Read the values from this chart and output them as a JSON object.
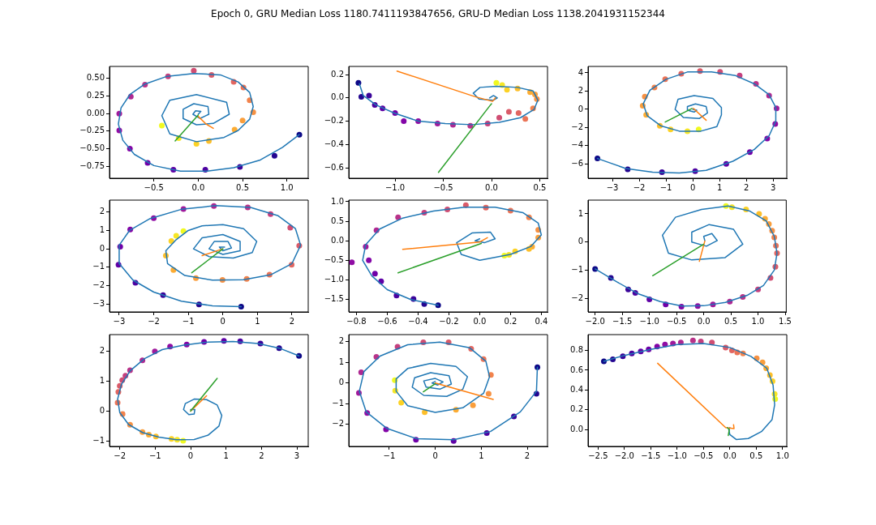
{
  "chart_data": [
    {
      "type": "line",
      "title": "Epoch 0, GRU Median Loss 1180.7411193847656, GRU-D Median Loss 1138.2041931152344",
      "xlim": [
        -1.0,
        1.24
      ],
      "ylim": [
        -0.92,
        0.67
      ],
      "xticks": [
        {
          "value": -0.5,
          "label": "−0.5"
        },
        {
          "value": 0,
          "label": "0.0"
        },
        {
          "value": 0.5,
          "label": "0.5"
        },
        {
          "value": 1,
          "label": "1.0"
        }
      ],
      "yticks": [
        {
          "value": -0.75,
          "label": "−0.75"
        },
        {
          "value": -0.5,
          "label": "−0.50"
        },
        {
          "value": -0.25,
          "label": "−0.25"
        },
        {
          "value": 0,
          "label": "0.00"
        },
        {
          "value": 0.25,
          "label": "0.25"
        },
        {
          "value": 0.5,
          "label": "0.50"
        }
      ],
      "series": [
        {
          "type": "scatter",
          "marker": "circle",
          "colors": [
            "#0d0887",
            "#240691",
            "#3a049a",
            "#4c02a1",
            "#5f01a6",
            "#6f00a8",
            "#8305a7",
            "#900da4",
            "#a01a9c",
            "#ae2892",
            "#b93389",
            "#c5407e",
            "#d04e73",
            "#da5b69",
            "#e26660",
            "#ea7457",
            "#f2834c",
            "#f69143",
            "#fa9e3b",
            "#fcac33",
            "#fdbf2a",
            "#fcd225",
            "#f6e626",
            "#f0f921"
          ],
          "x": [
            1.14,
            0.86,
            0.47,
            0.08,
            -0.28,
            -0.57,
            -0.77,
            -0.89,
            -0.89,
            -0.76,
            -0.6,
            -0.34,
            -0.05,
            0.15,
            0.4,
            0.51,
            0.58,
            0.62,
            0.5,
            0.41,
            0.12,
            -0.02,
            -0.22,
            -0.41
          ],
          "values": [
            -0.3,
            -0.6,
            -0.76,
            -0.8,
            -0.8,
            -0.7,
            -0.5,
            -0.24,
            0.0,
            0.24,
            0.41,
            0.53,
            0.61,
            0.55,
            0.45,
            0.37,
            0.19,
            0.02,
            -0.1,
            -0.23,
            -0.39,
            -0.43,
            -0.35,
            -0.17
          ]
        },
        {
          "type": "line",
          "color": "#1f77b4",
          "x": [
            1.14,
            0.95,
            0.7,
            0.4,
            0.1,
            -0.2,
            -0.5,
            -0.72,
            -0.85,
            -0.9,
            -0.87,
            -0.77,
            -0.6,
            -0.35,
            -0.05,
            0.25,
            0.45,
            0.58,
            0.62,
            0.58,
            0.45,
            0.29,
            -0.02,
            -0.32,
            -0.41,
            -0.32,
            -0.02,
            0.32,
            0.35,
            0.17,
            -0.02,
            -0.17,
            -0.17,
            -0.05,
            0.11,
            0.12,
            0.02,
            -0.06,
            -0.03,
            0.03,
            0.0
          ],
          "values": [
            -0.3,
            -0.48,
            -0.66,
            -0.77,
            -0.82,
            -0.82,
            -0.74,
            -0.58,
            -0.38,
            -0.15,
            0.08,
            0.27,
            0.42,
            0.53,
            0.57,
            0.55,
            0.45,
            0.3,
            0.1,
            -0.08,
            -0.24,
            -0.34,
            -0.4,
            -0.29,
            -0.03,
            0.19,
            0.27,
            0.16,
            -0.01,
            -0.14,
            -0.16,
            -0.07,
            0.06,
            0.14,
            0.1,
            -0.01,
            -0.07,
            -0.01,
            0.04,
            0.03,
            -0.01
          ]
        },
        {
          "type": "line",
          "color": "#ff7f0e",
          "x": [
            0.0,
            0.09,
            0.17
          ],
          "values": [
            -0.04,
            -0.15,
            -0.21
          ]
        },
        {
          "type": "line",
          "color": "#2ca02c",
          "x": [
            0.0,
            -0.26
          ],
          "values": [
            -0.02,
            -0.39
          ]
        }
      ]
    },
    {
      "type": "line",
      "xlim": [
        -1.48,
        0.58
      ],
      "ylim": [
        -0.69,
        0.27
      ],
      "xticks": [
        {
          "value": -1,
          "label": "−1.0"
        },
        {
          "value": -0.5,
          "label": "−0.5"
        },
        {
          "value": 0,
          "label": "0.0"
        },
        {
          "value": 0.5,
          "label": "0.5"
        }
      ],
      "yticks": [
        {
          "value": -0.6,
          "label": "−0.6"
        },
        {
          "value": -0.4,
          "label": "−0.4"
        },
        {
          "value": -0.2,
          "label": "−0.2"
        },
        {
          "value": 0,
          "label": "0.0"
        },
        {
          "value": 0.2,
          "label": "0.2"
        }
      ],
      "series": [
        {
          "type": "scatter",
          "marker": "circle",
          "colors": [
            "#0d0887",
            "#240691",
            "#3a049a",
            "#4c02a1",
            "#5f01a6",
            "#6f00a8",
            "#8305a7",
            "#900da4",
            "#a01a9c",
            "#ae2892",
            "#b93389",
            "#c5407e",
            "#d04e73",
            "#da5b69",
            "#e26660",
            "#ea7457",
            "#f2834c",
            "#f69143",
            "#fa9e3b",
            "#fcac33",
            "#fdbf2a",
            "#fcd225",
            "#f6e626",
            "#f0f921"
          ],
          "x": [
            -1.38,
            -1.35,
            -1.27,
            -1.21,
            -1.13,
            -1.0,
            -0.91,
            -0.76,
            -0.56,
            -0.4,
            -0.22,
            -0.04,
            0.08,
            0.18,
            0.28,
            0.35,
            0.43,
            0.47,
            0.45,
            0.4,
            0.27,
            0.16,
            0.11,
            0.05
          ],
          "values": [
            0.13,
            0.01,
            0.02,
            -0.06,
            -0.09,
            -0.13,
            -0.2,
            -0.2,
            -0.22,
            -0.23,
            -0.24,
            -0.22,
            -0.17,
            -0.12,
            -0.13,
            -0.18,
            -0.09,
            -0.01,
            0.03,
            0.05,
            0.08,
            0.07,
            0.11,
            0.13
          ]
        },
        {
          "type": "line",
          "color": "#1f77b4",
          "x": [
            -1.37,
            -1.33,
            -1.2,
            -1.01,
            -0.76,
            -0.48,
            -0.2,
            0.08,
            0.3,
            0.44,
            0.48,
            0.43,
            0.27,
            0.05,
            -0.12,
            -0.19,
            -0.13,
            0.02,
            0.06,
            0.02,
            -0.02
          ],
          "values": [
            0.12,
            0.02,
            -0.06,
            -0.13,
            -0.2,
            -0.22,
            -0.23,
            -0.21,
            -0.17,
            -0.1,
            -0.02,
            0.06,
            0.09,
            0.1,
            0.09,
            0.04,
            -0.01,
            -0.02,
            0.0,
            0.02,
            0.0
          ]
        },
        {
          "type": "line",
          "color": "#ff7f0e",
          "x": [
            -0.98,
            -0.17,
            0.01,
            0.04
          ],
          "values": [
            0.23,
            0.01,
            -0.03,
            0.0
          ]
        },
        {
          "type": "line",
          "color": "#2ca02c",
          "x": [
            -0.55,
            -0.02,
            0.0
          ],
          "values": [
            -0.64,
            -0.07,
            -0.05
          ]
        }
      ]
    },
    {
      "type": "line",
      "xlim": [
        -3.91,
        3.51
      ],
      "ylim": [
        -7.57,
        4.71
      ],
      "xticks": [
        {
          "value": -3,
          "label": "−3"
        },
        {
          "value": -2,
          "label": "−2"
        },
        {
          "value": -1,
          "label": "−1"
        },
        0,
        1,
        2,
        3
      ],
      "yticks": [
        {
          "value": -6,
          "label": "−6"
        },
        {
          "value": -4,
          "label": "−4"
        },
        {
          "value": -2,
          "label": "−2"
        },
        0,
        2,
        4
      ],
      "series": [
        {
          "type": "scatter",
          "marker": "circle",
          "colors": [
            "#0d0887",
            "#240691",
            "#3a049a",
            "#4c02a1",
            "#5f01a6",
            "#6f00a8",
            "#8305a7",
            "#900da4",
            "#a01a9c",
            "#ae2892",
            "#b93389",
            "#c5407e",
            "#d04e73",
            "#da5b69",
            "#e26660",
            "#ea7457",
            "#f2834c",
            "#f69143",
            "#fa9e3b",
            "#fcac33",
            "#fdbf2a",
            "#fcd225",
            "#f6e626",
            "#f0f921"
          ],
          "x": [
            -3.56,
            -2.43,
            -1.15,
            0.09,
            1.25,
            2.13,
            2.78,
            3.08,
            3.13,
            2.85,
            2.36,
            1.75,
            1.02,
            0.27,
            -0.43,
            -1.03,
            -1.43,
            -1.79,
            -1.87,
            -1.74,
            -1.23,
            -0.83,
            -0.2,
            0.22
          ],
          "values": [
            -5.4,
            -6.6,
            -6.9,
            -6.8,
            -6.0,
            -4.7,
            -3.2,
            -1.6,
            0.1,
            1.5,
            2.8,
            3.7,
            4.1,
            4.2,
            3.9,
            3.3,
            2.4,
            1.4,
            0.4,
            -0.6,
            -1.8,
            -2.2,
            -2.4,
            -2.2
          ]
        },
        {
          "type": "line",
          "color": "#1f77b4",
          "x": [
            -3.56,
            -2.5,
            -1.5,
            -0.5,
            0.5,
            1.5,
            2.3,
            2.85,
            3.1,
            3.1,
            2.85,
            2.3,
            1.6,
            0.7,
            -0.2,
            -1.0,
            -1.6,
            -1.85,
            -1.7,
            -1.2,
            -0.5,
            0.3,
            0.9,
            1.07,
            1.07,
            0.75,
            0.05,
            -0.55,
            -0.66,
            -0.35,
            0.25,
            0.55,
            0.5,
            0.1,
            -0.2,
            -0.2,
            0.05,
            0.15,
            0.0
          ],
          "values": [
            -5.4,
            -6.5,
            -6.9,
            -7.0,
            -6.7,
            -5.7,
            -4.4,
            -2.9,
            -1.3,
            0.2,
            1.6,
            2.8,
            3.7,
            4.1,
            4.1,
            3.3,
            2.1,
            0.6,
            -0.7,
            -1.8,
            -2.4,
            -2.4,
            -1.9,
            -0.6,
            0.2,
            1.2,
            1.5,
            1.1,
            0.0,
            -0.9,
            -1.0,
            -0.4,
            0.3,
            0.6,
            0.3,
            -0.1,
            -0.3,
            -0.1,
            0.0
          ]
        },
        {
          "type": "line",
          "color": "#ff7f0e",
          "x": [
            0.02,
            0.5
          ],
          "values": [
            0.1,
            -1.2
          ]
        },
        {
          "type": "line",
          "color": "#2ca02c",
          "x": [
            -0.03,
            -1.03
          ],
          "values": [
            0.1,
            -1.4
          ]
        }
      ]
    },
    {
      "type": "line",
      "xlim": [
        -3.28,
        2.47
      ],
      "ylim": [
        -3.43,
        2.65
      ],
      "xticks": [
        {
          "value": -3,
          "label": "−3"
        },
        {
          "value": -2,
          "label": "−2"
        },
        {
          "value": -1,
          "label": "−1"
        },
        0,
        1,
        2
      ],
      "yticks": [
        {
          "value": -3,
          "label": "−3"
        },
        {
          "value": -2,
          "label": "−2"
        },
        {
          "value": -1,
          "label": "−1"
        },
        0,
        1,
        2
      ],
      "series": [
        {
          "type": "scatter",
          "marker": "circle",
          "colors": [
            "#0d0887",
            "#240691",
            "#3a049a",
            "#4c02a1",
            "#5f01a6",
            "#6f00a8",
            "#8305a7",
            "#900da4",
            "#a01a9c",
            "#ae2892",
            "#b93389",
            "#c5407e",
            "#d04e73",
            "#da5b69",
            "#e26660",
            "#ea7457",
            "#f2834c",
            "#f69143",
            "#fa9e3b",
            "#fcac33",
            "#fdbf2a",
            "#fcd225",
            "#f6e626",
            "#f0f921"
          ],
          "x": [
            0.53,
            -0.69,
            -1.73,
            -2.53,
            -3.02,
            -2.97,
            -2.68,
            -2.0,
            -1.14,
            -0.26,
            0.72,
            1.38,
            1.95,
            2.21,
            1.99,
            1.35,
            0.69,
            -0.01,
            -0.78,
            -1.43,
            -1.65,
            -1.49,
            -1.35,
            -1.14
          ],
          "values": [
            -3.14,
            -3.02,
            -2.52,
            -1.84,
            -0.86,
            0.12,
            1.05,
            1.67,
            2.16,
            2.33,
            2.25,
            1.89,
            1.15,
            0.17,
            -0.86,
            -1.4,
            -1.64,
            -1.69,
            -1.59,
            -1.15,
            -0.37,
            0.42,
            0.71,
            0.96
          ]
        },
        {
          "type": "line",
          "color": "#1f77b4",
          "x": [
            0.53,
            -0.3,
            -1.2,
            -2.0,
            -2.6,
            -3.0,
            -3.0,
            -2.7,
            -2.1,
            -1.2,
            -0.2,
            0.8,
            1.6,
            2.1,
            2.25,
            2.0,
            1.4,
            0.6,
            -0.3,
            -1.1,
            -1.6,
            -1.65,
            -1.35,
            -1.0,
            -0.6,
            0.0,
            0.6,
            0.98,
            0.85,
            0.3,
            -0.4,
            -0.85,
            -0.6,
            0.0,
            0.5,
            0.5,
            0.0,
            -0.4,
            -0.25,
            0.15,
            0.25,
            0.0,
            -0.1,
            0.05
          ],
          "values": [
            -3.14,
            -3.1,
            -2.85,
            -2.35,
            -1.7,
            -0.8,
            0.2,
            1.0,
            1.65,
            2.15,
            2.35,
            2.25,
            1.8,
            1.1,
            0.2,
            -0.8,
            -1.4,
            -1.68,
            -1.7,
            -1.45,
            -0.8,
            -0.1,
            0.5,
            1.0,
            1.25,
            1.32,
            1.1,
            0.4,
            -0.2,
            -0.5,
            -0.42,
            0.0,
            0.6,
            0.78,
            0.4,
            -0.1,
            -0.3,
            0.0,
            0.4,
            0.4,
            0.05,
            -0.1,
            0.1,
            0.1
          ]
        },
        {
          "type": "line",
          "color": "#ff7f0e",
          "x": [
            0,
            -0.6
          ],
          "values": [
            0,
            -0.37
          ]
        },
        {
          "type": "line",
          "color": "#2ca02c",
          "x": [
            0,
            -0.9
          ],
          "values": [
            0,
            -1.3
          ]
        }
      ]
    },
    {
      "type": "line",
      "xlim": [
        -0.85,
        0.44
      ],
      "ylim": [
        -1.82,
        1.04
      ],
      "xticks": [
        {
          "value": -0.8,
          "label": "−0.8"
        },
        {
          "value": -0.6,
          "label": "−0.6"
        },
        {
          "value": -0.4,
          "label": "−0.4"
        },
        {
          "value": -0.2,
          "label": "−0.2"
        },
        {
          "value": 0,
          "label": "0.0"
        },
        {
          "value": 0.2,
          "label": "0.2"
        },
        {
          "value": 0.4,
          "label": "0.4"
        }
      ],
      "yticks": [
        {
          "value": -1.5,
          "label": "−1.5"
        },
        {
          "value": -1,
          "label": "−1.0"
        },
        {
          "value": -0.5,
          "label": "−0.5"
        },
        {
          "value": 0,
          "label": "0.0"
        },
        {
          "value": 0.5,
          "label": "0.5"
        },
        {
          "value": 1,
          "label": "1.0"
        }
      ],
      "series": [
        {
          "type": "scatter",
          "marker": "circle",
          "colors": [
            "#0d0887",
            "#240691",
            "#3a049a",
            "#4c02a1",
            "#5f01a6",
            "#6f00a8",
            "#8305a7",
            "#900da4",
            "#a01a9c",
            "#ae2892",
            "#b93389",
            "#c5407e",
            "#d04e73",
            "#da5b69",
            "#e26660",
            "#ea7457",
            "#f2834c",
            "#f69143",
            "#fa9e3b",
            "#fcac33",
            "#fdbf2a",
            "#fcd225",
            "#f6e626",
            "#f0f921"
          ],
          "x": [
            -0.27,
            -0.36,
            -0.43,
            -0.54,
            -0.64,
            -0.68,
            -0.72,
            -0.83,
            -0.74,
            -0.67,
            -0.53,
            -0.36,
            -0.21,
            -0.09,
            0.04,
            0.2,
            0.32,
            0.38,
            0.38,
            0.34,
            0.32,
            0.23,
            0.19,
            0.16
          ],
          "values": [
            -1.65,
            -1.62,
            -1.49,
            -1.4,
            -1.04,
            -0.84,
            -0.5,
            -0.55,
            -0.15,
            0.27,
            0.6,
            0.72,
            0.8,
            0.91,
            0.85,
            0.77,
            0.6,
            0.28,
            0.08,
            -0.15,
            -0.21,
            -0.27,
            -0.36,
            -0.38
          ]
        },
        {
          "type": "line",
          "color": "#1f77b4",
          "x": [
            -0.27,
            -0.45,
            -0.6,
            -0.7,
            -0.76,
            -0.74,
            -0.65,
            -0.5,
            -0.3,
            -0.1,
            0.1,
            0.28,
            0.38,
            0.4,
            0.33,
            0.2,
            0.0,
            -0.12,
            -0.15,
            -0.05,
            0.07,
            0.1,
            0.03,
            -0.03,
            0.0
          ],
          "values": [
            -1.65,
            -1.5,
            -1.25,
            -0.9,
            -0.5,
            -0.1,
            0.3,
            0.58,
            0.76,
            0.86,
            0.86,
            0.72,
            0.45,
            0.15,
            -0.15,
            -0.35,
            -0.5,
            -0.35,
            -0.05,
            0.2,
            0.22,
            0.05,
            -0.05,
            0.0,
            0.05
          ]
        },
        {
          "type": "line",
          "color": "#ff7f0e",
          "x": [
            -0.5,
            0.0,
            0.05
          ],
          "values": [
            -0.22,
            -0.03,
            0.08
          ]
        },
        {
          "type": "line",
          "color": "#2ca02c",
          "x": [
            -0.53,
            0.01
          ],
          "values": [
            -0.82,
            -0.07
          ]
        }
      ]
    },
    {
      "type": "line",
      "xlim": [
        -2.13,
        1.52
      ],
      "ylim": [
        -2.49,
        1.49
      ],
      "xticks": [
        {
          "value": -2,
          "label": "−2.0"
        },
        {
          "value": -1.5,
          "label": "−1.5"
        },
        {
          "value": -1,
          "label": "−1.0"
        },
        {
          "value": -0.5,
          "label": "−0.5"
        },
        {
          "value": 0,
          "label": "0.0"
        },
        {
          "value": 0.5,
          "label": "0.5"
        },
        {
          "value": 1,
          "label": "1.0"
        },
        {
          "value": 1.5,
          "label": "1.5"
        }
      ],
      "yticks": [
        {
          "value": -2,
          "label": "−2"
        },
        {
          "value": -1,
          "label": "−1"
        },
        0,
        1
      ],
      "series": [
        {
          "type": "scatter",
          "marker": "circle",
          "colors": [
            "#0d0887",
            "#240691",
            "#3a049a",
            "#4c02a1",
            "#5f01a6",
            "#6f00a8",
            "#8305a7",
            "#900da4",
            "#a01a9c",
            "#ae2892",
            "#b93389",
            "#c5407e",
            "#d04e73",
            "#da5b69",
            "#e26660",
            "#ea7457",
            "#f2834c",
            "#f69143",
            "#fa9e3b",
            "#fcac33",
            "#fdbf2a",
            "#fcd225",
            "#f6e626",
            "#f0f921"
          ],
          "x": [
            -2.0,
            -1.71,
            -1.39,
            -1.26,
            -1.0,
            -0.7,
            -0.41,
            -0.11,
            0.17,
            0.48,
            0.72,
            1.0,
            1.23,
            1.32,
            1.35,
            1.33,
            1.3,
            1.26,
            1.2,
            1.13,
            1.02,
            0.78,
            0.52,
            0.41
          ],
          "values": [
            -0.96,
            -1.28,
            -1.69,
            -1.81,
            -2.04,
            -2.22,
            -2.3,
            -2.28,
            -2.22,
            -2.12,
            -1.96,
            -1.69,
            -1.28,
            -0.88,
            -0.4,
            -0.13,
            0.16,
            0.4,
            0.64,
            0.83,
            1.0,
            1.16,
            1.24,
            1.28
          ]
        },
        {
          "type": "line",
          "color": "#1f77b4",
          "x": [
            -2.0,
            -1.6,
            -1.2,
            -0.8,
            -0.4,
            0.0,
            0.4,
            0.8,
            1.1,
            1.3,
            1.35,
            1.3,
            1.15,
            0.85,
            0.45,
            -0.04,
            -0.52,
            -0.76,
            -0.65,
            -0.22,
            0.39,
            0.72,
            0.55,
            0.1,
            -0.22,
            -0.22,
            0.05,
            0.25,
            0.15,
            0.0,
            0.02
          ],
          "values": [
            -0.96,
            -1.42,
            -1.85,
            -2.12,
            -2.28,
            -2.27,
            -2.15,
            -1.9,
            -1.55,
            -1.0,
            -0.4,
            0.2,
            0.75,
            1.1,
            1.28,
            1.16,
            0.88,
            0.24,
            -0.4,
            -0.64,
            -0.56,
            -0.08,
            0.45,
            0.62,
            0.35,
            0.0,
            -0.15,
            0.05,
            0.3,
            0.2,
            0.05
          ]
        },
        {
          "type": "line",
          "color": "#ff7f0e",
          "x": [
            0.02,
            -0.08
          ],
          "values": [
            0.03,
            -0.69
          ]
        },
        {
          "type": "line",
          "color": "#2ca02c",
          "x": [
            0.0,
            -0.94
          ],
          "values": [
            -0.08,
            -1.2
          ]
        }
      ]
    },
    {
      "type": "line",
      "xlim": [
        -2.29,
        3.32
      ],
      "ylim": [
        -1.18,
        2.55
      ],
      "xticks": [
        {
          "value": -2,
          "label": "−2"
        },
        {
          "value": -1,
          "label": "−1"
        },
        0,
        1,
        2,
        3
      ],
      "yticks": [
        {
          "value": -1,
          "label": "−1"
        },
        0,
        1,
        2
      ],
      "series": [
        {
          "type": "scatter",
          "marker": "circle",
          "colors": [
            "#0d0887",
            "#240691",
            "#3a049a",
            "#4c02a1",
            "#5f01a6",
            "#6f00a8",
            "#8305a7",
            "#900da4",
            "#a01a9c",
            "#ae2892",
            "#b93389",
            "#c5407e",
            "#d04e73",
            "#da5b69",
            "#e26660",
            "#ea7457",
            "#f2834c",
            "#f69143",
            "#fa9e3b",
            "#fcac33",
            "#fdbf2a",
            "#fcd225",
            "#f6e626",
            "#f0f921"
          ],
          "x": [
            3.06,
            2.5,
            1.97,
            1.4,
            0.94,
            0.38,
            -0.11,
            -0.58,
            -1.01,
            -1.36,
            -1.71,
            -1.84,
            -1.93,
            -2.0,
            -2.04,
            -2.06,
            -1.92,
            -1.71,
            -1.36,
            -1.18,
            -0.98,
            -0.54,
            -0.38,
            -0.21
          ],
          "values": [
            1.84,
            2.1,
            2.25,
            2.33,
            2.34,
            2.31,
            2.22,
            2.15,
            1.99,
            1.69,
            1.36,
            1.18,
            1.03,
            0.84,
            0.64,
            0.28,
            -0.1,
            -0.46,
            -0.7,
            -0.79,
            -0.85,
            -0.93,
            -0.96,
            -0.99
          ]
        },
        {
          "type": "line",
          "color": "#1f77b4",
          "x": [
            3.06,
            2.5,
            1.9,
            1.2,
            0.5,
            -0.2,
            -0.8,
            -1.3,
            -1.7,
            -1.95,
            -2.06,
            -2.0,
            -1.75,
            -1.35,
            -0.9,
            -0.4,
            0.1,
            0.5,
            0.8,
            0.88,
            0.75,
            0.45,
            0.1,
            -0.15,
            -0.2,
            -0.05,
            0.1,
            0.12,
            0.0
          ],
          "values": [
            1.84,
            2.1,
            2.25,
            2.32,
            2.3,
            2.2,
            2.05,
            1.75,
            1.35,
            0.9,
            0.4,
            -0.05,
            -0.45,
            -0.72,
            -0.87,
            -0.96,
            -0.95,
            -0.8,
            -0.5,
            -0.15,
            0.2,
            0.38,
            0.4,
            0.25,
            0.05,
            -0.12,
            -0.1,
            0.05,
            0.05
          ]
        },
        {
          "type": "line",
          "color": "#ff7f0e",
          "x": [
            0,
            0.45
          ],
          "values": [
            0,
            0.51
          ]
        },
        {
          "type": "line",
          "color": "#2ca02c",
          "x": [
            0,
            0.75
          ],
          "values": [
            0,
            1.09
          ]
        }
      ]
    },
    {
      "type": "line",
      "xlim": [
        -1.88,
        2.44
      ],
      "ylim": [
        -3.07,
        2.34
      ],
      "xticks": [
        {
          "value": -1,
          "label": "−1"
        },
        0,
        1,
        2
      ],
      "yticks": [
        {
          "value": -2,
          "label": "−2"
        },
        {
          "value": -1,
          "label": "−1"
        },
        0,
        1,
        2
      ],
      "series": [
        {
          "type": "scatter",
          "marker": "circle",
          "colors": [
            "#0d0887",
            "#240691",
            "#3a049a",
            "#4c02a1",
            "#5f01a6",
            "#6f00a8",
            "#8305a7",
            "#900da4",
            "#a01a9c",
            "#ae2892",
            "#b93389",
            "#c5407e",
            "#d04e73",
            "#da5b69",
            "#e26660",
            "#ea7457",
            "#f2834c",
            "#f69143",
            "#fa9e3b",
            "#fcac33",
            "#fdbf2a",
            "#fcd225",
            "#f6e626",
            "#f0f921"
          ],
          "x": [
            2.22,
            2.2,
            1.71,
            1.12,
            0.4,
            -0.42,
            -1.07,
            -1.48,
            -1.66,
            -1.61,
            -1.28,
            -0.82,
            -0.26,
            0.29,
            0.78,
            1.05,
            1.21,
            1.16,
            0.82,
            0.45,
            -0.23,
            -0.74,
            -0.87,
            -0.88
          ],
          "values": [
            0.76,
            -0.52,
            -1.62,
            -2.42,
            -2.81,
            -2.75,
            -2.25,
            -1.45,
            -0.48,
            0.52,
            1.26,
            1.75,
            1.97,
            1.97,
            1.65,
            1.15,
            0.39,
            -0.52,
            -1.08,
            -1.3,
            -1.41,
            -0.95,
            -0.37,
            0.13
          ]
        },
        {
          "type": "line",
          "color": "#1f77b4",
          "x": [
            2.22,
            2.2,
            1.85,
            1.2,
            0.4,
            -0.4,
            -1.05,
            -1.5,
            -1.65,
            -1.55,
            -1.2,
            -0.6,
            0.1,
            0.75,
            1.1,
            1.18,
            1.05,
            0.6,
            0.0,
            -0.6,
            -0.85,
            -0.85,
            -0.6,
            -0.1,
            0.45,
            0.7,
            0.6,
            0.25,
            -0.25,
            -0.5,
            -0.45,
            -0.1,
            0.3,
            0.35,
            0.1,
            -0.2,
            -0.25,
            0.0,
            0.17,
            0.05,
            -0.07,
            0.0
          ],
          "values": [
            0.76,
            -0.4,
            -1.4,
            -2.35,
            -2.75,
            -2.7,
            -2.2,
            -1.4,
            -0.4,
            0.55,
            1.3,
            1.85,
            1.98,
            1.7,
            1.05,
            0.3,
            -0.5,
            -1.2,
            -1.42,
            -1.1,
            -0.4,
            0.2,
            0.7,
            0.95,
            0.8,
            0.3,
            -0.3,
            -0.65,
            -0.6,
            -0.2,
            0.25,
            0.5,
            0.35,
            -0.05,
            -0.3,
            -0.2,
            0.1,
            0.22,
            0.05,
            -0.1,
            0.0,
            0.07
          ]
        },
        {
          "type": "line",
          "color": "#ff7f0e",
          "x": [
            0,
            1.26
          ],
          "values": [
            0,
            -0.8
          ]
        },
        {
          "type": "line",
          "color": "#2ca02c",
          "x": [
            0,
            -0.26
          ],
          "values": [
            -0.04,
            -0.43
          ]
        }
      ]
    },
    {
      "type": "line",
      "xlim": [
        -2.69,
        1.08
      ],
      "ylim": [
        -0.17,
        0.96
      ],
      "xticks": [
        {
          "value": -2.5,
          "label": "−2.5"
        },
        {
          "value": -2,
          "label": "−2.0"
        },
        {
          "value": -1.5,
          "label": "−1.5"
        },
        {
          "value": -1,
          "label": "−1.0"
        },
        {
          "value": -0.5,
          "label": "−0.5"
        },
        {
          "value": 0,
          "label": "0.0"
        },
        {
          "value": 0.5,
          "label": "0.5"
        },
        {
          "value": 1,
          "label": "1.0"
        }
      ],
      "yticks": [
        {
          "value": 0,
          "label": "0.0"
        },
        0.2,
        0.4,
        0.6,
        0.8
      ],
      "series": [
        {
          "type": "scatter",
          "marker": "circle",
          "colors": [
            "#0d0887",
            "#240691",
            "#3a049a",
            "#4c02a1",
            "#5f01a6",
            "#6f00a8",
            "#8305a7",
            "#900da4",
            "#a01a9c",
            "#ae2892",
            "#b93389",
            "#c5407e",
            "#d04e73",
            "#da5b69",
            "#e26660",
            "#ea7457",
            "#f2834c",
            "#f69143",
            "#fa9e3b",
            "#fcac33",
            "#fdbf2a",
            "#fcd225",
            "#f6e626",
            "#f0f921"
          ],
          "x": [
            -2.39,
            -2.22,
            -2.03,
            -1.86,
            -1.69,
            -1.54,
            -1.38,
            -1.23,
            -1.08,
            -0.93,
            -0.7,
            -0.55,
            -0.34,
            -0.08,
            0.04,
            0.14,
            0.25,
            0.51,
            0.62,
            0.69,
            0.76,
            0.81,
            0.85,
            0.86
          ],
          "values": [
            0.69,
            0.71,
            0.74,
            0.77,
            0.79,
            0.81,
            0.84,
            0.86,
            0.87,
            0.88,
            0.9,
            0.89,
            0.88,
            0.83,
            0.8,
            0.78,
            0.77,
            0.72,
            0.68,
            0.62,
            0.55,
            0.49,
            0.36,
            0.31
          ]
        },
        {
          "type": "line",
          "color": "#1f77b4",
          "x": [
            -2.39,
            -2.0,
            -1.5,
            -1.0,
            -0.5,
            0.0,
            0.4,
            0.7,
            0.82,
            0.85,
            0.8,
            0.6,
            0.35,
            0.12,
            0.0,
            -0.02,
            0.0
          ],
          "values": [
            0.69,
            0.75,
            0.81,
            0.86,
            0.87,
            0.83,
            0.74,
            0.62,
            0.45,
            0.25,
            0.1,
            -0.02,
            -0.09,
            -0.1,
            -0.05,
            0.0,
            0.02
          ]
        },
        {
          "type": "line",
          "color": "#ff7f0e",
          "x": [
            -1.37,
            -0.08,
            0.08,
            0.07
          ],
          "values": [
            0.67,
            0.02,
            0.01,
            0.05
          ]
        },
        {
          "type": "line",
          "color": "#2ca02c",
          "x": [
            -0.03,
            -0.01,
            -0.05
          ],
          "values": [
            -0.06,
            0.0,
            0.02
          ]
        }
      ]
    }
  ]
}
